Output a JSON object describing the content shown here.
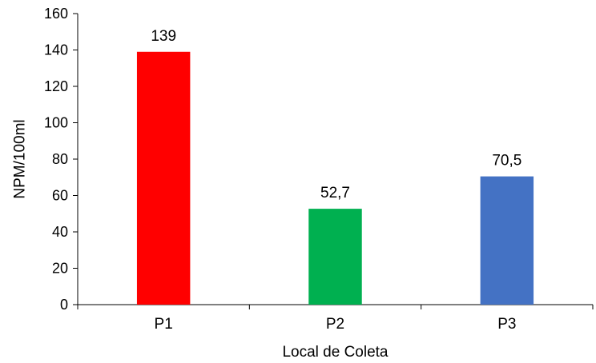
{
  "chart_data": {
    "type": "bar",
    "title": "",
    "xlabel": "Local de Coleta",
    "ylabel": "NPM/100ml",
    "categories": [
      "P1",
      "P2",
      "P3"
    ],
    "values": [
      139,
      52.7,
      70.5
    ],
    "data_labels": [
      "139",
      "52,7",
      "70,5"
    ],
    "colors": [
      "#ff0000",
      "#00b050",
      "#4472c4"
    ],
    "ylim": [
      0,
      160
    ],
    "yticks": [
      0,
      20,
      40,
      60,
      80,
      100,
      120,
      140,
      160
    ],
    "grid": false,
    "legend": "none"
  }
}
